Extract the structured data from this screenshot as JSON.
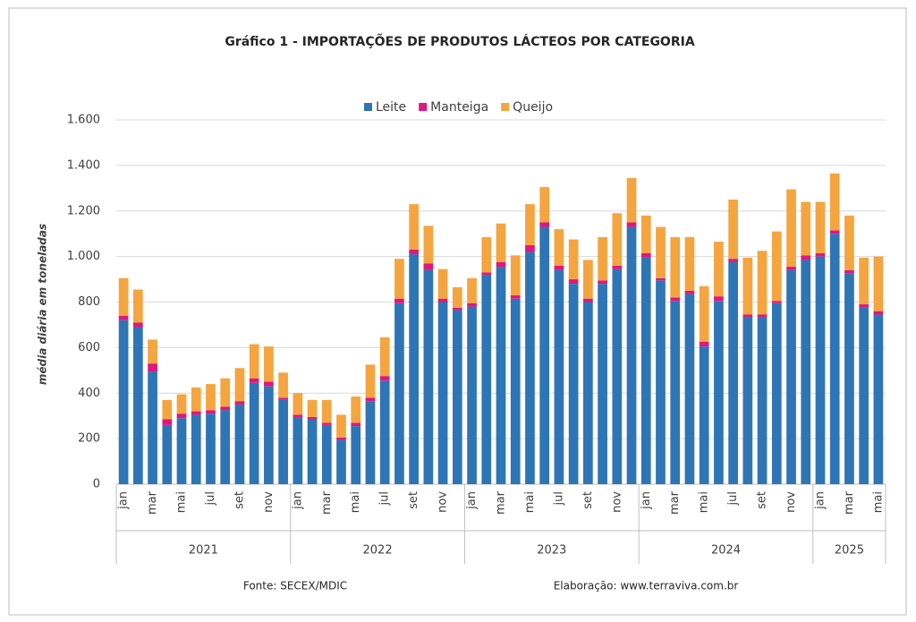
{
  "chart_data": {
    "type": "stacked_bar",
    "title": "Gráfico 1 - IMPORTAÇÕES DE PRODUTOS LÁCTEOS POR CATEGORIA",
    "y_label": "média diária em toneladas",
    "source": "Fonte: SECEX/MDIC",
    "credit": "Elaboração: www.terraviva.com.br",
    "categories": [
      "jan",
      null,
      "mar",
      null,
      "mai",
      null,
      "jul",
      null,
      "set",
      null,
      "nov",
      null,
      "jan",
      null,
      "mar",
      null,
      "mai",
      null,
      "jul",
      null,
      "set",
      null,
      "nov",
      null,
      "jan",
      null,
      "mar",
      null,
      "mai",
      null,
      "jul",
      null,
      "set",
      null,
      "nov",
      null,
      "jan",
      null,
      "mar",
      null,
      "mai",
      null,
      "jul",
      null,
      "set",
      null,
      "nov",
      null,
      "jan",
      null,
      "mar",
      null,
      "mai"
    ],
    "years": [
      "2021",
      "2022",
      "2023",
      "2024",
      "2025"
    ],
    "series": [
      {
        "name": "Leite",
        "color": "#2e75b6",
        "values": [
          720,
          690,
          495,
          260,
          290,
          305,
          310,
          325,
          350,
          445,
          430,
          370,
          295,
          285,
          260,
          195,
          255,
          365,
          455,
          795,
          1010,
          940,
          800,
          765,
          780,
          920,
          955,
          815,
          1020,
          1130,
          940,
          880,
          800,
          880,
          945,
          1130,
          995,
          895,
          805,
          835,
          605,
          805,
          975,
          735,
          735,
          795,
          940,
          985,
          1000,
          1100,
          925,
          775,
          745
        ]
      },
      {
        "name": "Manteiga",
        "color": "#e0177f",
        "values": [
          20,
          20,
          35,
          25,
          20,
          15,
          15,
          15,
          15,
          20,
          20,
          10,
          10,
          10,
          10,
          10,
          15,
          15,
          20,
          20,
          20,
          30,
          15,
          10,
          15,
          10,
          20,
          15,
          30,
          20,
          20,
          20,
          15,
          15,
          15,
          20,
          20,
          10,
          15,
          15,
          20,
          20,
          15,
          10,
          10,
          10,
          15,
          20,
          15,
          15,
          15,
          15,
          15
        ]
      },
      {
        "name": "Queijo",
        "color": "#f4a540",
        "values": [
          165,
          145,
          105,
          85,
          85,
          105,
          115,
          125,
          145,
          150,
          155,
          110,
          95,
          75,
          100,
          100,
          115,
          145,
          170,
          175,
          200,
          165,
          130,
          90,
          110,
          155,
          170,
          175,
          180,
          155,
          160,
          175,
          170,
          190,
          230,
          195,
          165,
          225,
          265,
          235,
          245,
          240,
          260,
          250,
          280,
          305,
          340,
          235,
          225,
          250,
          240,
          205,
          240
        ]
      }
    ],
    "ylim": [
      0,
      1600
    ],
    "yticks": [
      0,
      200,
      400,
      600,
      800,
      {
        "value": 1000,
        "label": "1.000"
      },
      {
        "value": 1200,
        "label": "1.200"
      },
      {
        "value": 1400,
        "label": "1.400"
      },
      {
        "value": 1600,
        "label": "1.600"
      }
    ],
    "grid": true,
    "legend": "top"
  }
}
